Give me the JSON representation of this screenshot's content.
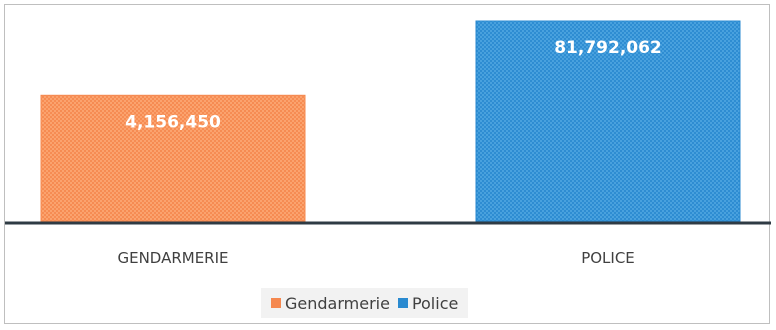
{
  "chart_data": {
    "type": "bar",
    "categories": [
      "GENDARMERIE",
      "POLICE"
    ],
    "values": [
      4156450,
      81792062
    ],
    "data_labels": [
      "4,156,450",
      "81,792,062"
    ],
    "legend": [
      "Gendarmerie",
      "Police"
    ],
    "legend_placement": "bottom",
    "colors": [
      "#f5884f",
      "#2a8ad0"
    ],
    "axis_color": "#2f3b44",
    "grid": false
  }
}
